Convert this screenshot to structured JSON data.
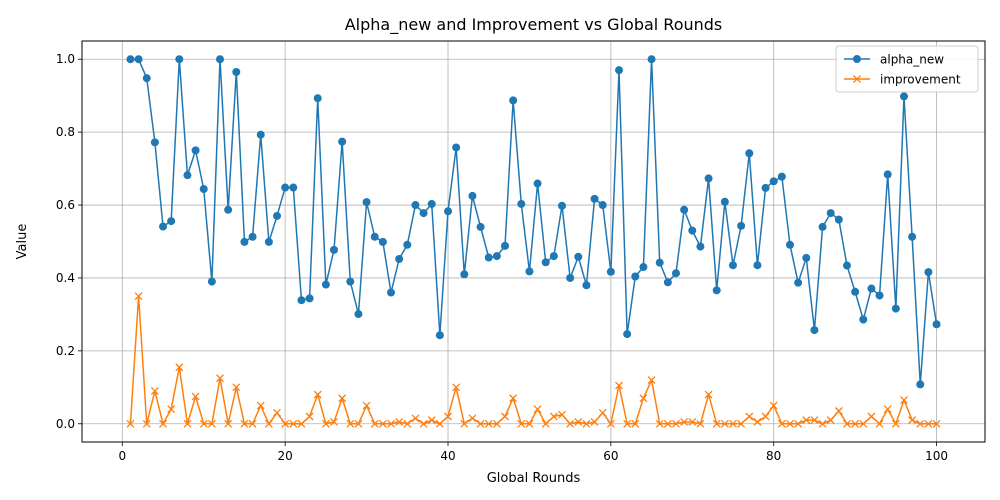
{
  "chart_data": {
    "type": "line",
    "title": "Alpha_new and Improvement vs Global Rounds",
    "xlabel": "Global Rounds",
    "ylabel": "Value",
    "xlim": [
      -4.95,
      105.95
    ],
    "ylim": [
      -0.05,
      1.05
    ],
    "xticks": [
      0,
      20,
      40,
      60,
      80,
      100
    ],
    "yticks": [
      0.0,
      0.2,
      0.4,
      0.6,
      0.8,
      1.0
    ],
    "grid": true,
    "legend_position": "top-right",
    "x": [
      1,
      2,
      3,
      4,
      5,
      6,
      7,
      8,
      9,
      10,
      11,
      12,
      13,
      14,
      15,
      16,
      17,
      18,
      19,
      20,
      21,
      22,
      23,
      24,
      25,
      26,
      27,
      28,
      29,
      30,
      31,
      32,
      33,
      34,
      35,
      36,
      37,
      38,
      39,
      40,
      41,
      42,
      43,
      44,
      45,
      46,
      47,
      48,
      49,
      50,
      51,
      52,
      53,
      54,
      55,
      56,
      57,
      58,
      59,
      60,
      61,
      62,
      63,
      64,
      65,
      66,
      67,
      68,
      69,
      70,
      71,
      72,
      73,
      74,
      75,
      76,
      77,
      78,
      79,
      80,
      81,
      82,
      83,
      84,
      85,
      86,
      87,
      88,
      89,
      90,
      91,
      92,
      93,
      94,
      95,
      96,
      97,
      98,
      99,
      100
    ],
    "series": [
      {
        "name": "alpha_new",
        "color": "#1f77b4",
        "marker": "circle",
        "values": [
          1.0,
          1.0,
          0.948,
          0.772,
          0.541,
          0.556,
          1.0,
          0.682,
          0.75,
          0.644,
          0.39,
          1.0,
          0.587,
          0.965,
          0.499,
          0.513,
          0.793,
          0.499,
          0.57,
          0.648,
          0.648,
          0.339,
          0.344,
          0.893,
          0.382,
          0.477,
          0.774,
          0.39,
          0.301,
          0.608,
          0.513,
          0.499,
          0.36,
          0.452,
          0.491,
          0.6,
          0.578,
          0.603,
          0.243,
          0.583,
          0.758,
          0.41,
          0.625,
          0.54,
          0.456,
          0.46,
          0.488,
          0.887,
          0.603,
          0.418,
          0.659,
          0.443,
          0.46,
          0.598,
          0.4,
          0.458,
          0.38,
          0.617,
          0.6,
          0.417,
          0.97,
          0.246,
          0.404,
          0.43,
          1.0,
          0.442,
          0.388,
          0.413,
          0.587,
          0.53,
          0.486,
          0.673,
          0.366,
          0.609,
          0.435,
          0.543,
          0.742,
          0.435,
          0.647,
          0.665,
          0.678,
          0.491,
          0.387,
          0.455,
          0.257,
          0.54,
          0.578,
          0.56,
          0.434,
          0.362,
          0.286,
          0.371,
          0.352,
          0.684,
          0.316,
          0.898,
          0.513,
          0.108,
          0.416,
          0.273
        ]
      },
      {
        "name": "improvement",
        "color": "#ff7f0e",
        "marker": "x",
        "values": [
          0.0,
          0.35,
          0.0,
          0.09,
          0.0,
          0.04,
          0.155,
          0.0,
          0.075,
          0.0,
          0.0,
          0.125,
          0.0,
          0.1,
          0.0,
          0.0,
          0.05,
          0.0,
          0.03,
          0.0,
          0.0,
          0.0,
          0.02,
          0.08,
          0.0,
          0.005,
          0.07,
          0.0,
          0.0,
          0.05,
          0.0,
          0.0,
          0.0,
          0.005,
          0.0,
          0.015,
          0.0,
          0.01,
          0.0,
          0.02,
          0.1,
          0.0,
          0.015,
          0.0,
          0.0,
          0.0,
          0.02,
          0.07,
          0.0,
          0.0,
          0.04,
          0.0,
          0.02,
          0.025,
          0.0,
          0.005,
          0.0,
          0.005,
          0.03,
          0.0,
          0.105,
          0.0,
          0.0,
          0.07,
          0.12,
          0.0,
          0.0,
          0.0,
          0.005,
          0.005,
          0.0,
          0.08,
          0.0,
          0.0,
          0.0,
          0.0,
          0.02,
          0.005,
          0.02,
          0.05,
          0.0,
          0.0,
          0.0,
          0.01,
          0.01,
          0.0,
          0.01,
          0.035,
          0.0,
          0.0,
          0.0,
          0.02,
          0.0,
          0.04,
          0.0,
          0.065,
          0.01,
          0.0,
          0.0,
          0.0
        ]
      }
    ]
  }
}
